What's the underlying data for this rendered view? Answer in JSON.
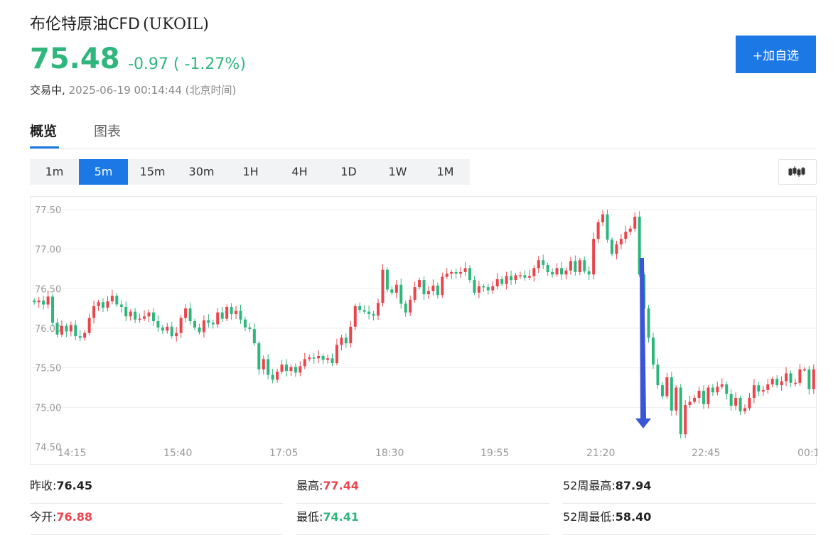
{
  "header": {
    "name": "布伦特原油CFD",
    "code": "(UKOIL)",
    "price": "75.48",
    "change": "-0.97 ( -1.27%)",
    "status_label": "交易中,",
    "timestamp": "2025-06-19 00:14:44",
    "tz": "(北京时间)",
    "add_button": "+加自选"
  },
  "tabs": [
    {
      "label": "概览",
      "active": true
    },
    {
      "label": "图表",
      "active": false
    }
  ],
  "intervals": [
    {
      "label": "1m",
      "active": false
    },
    {
      "label": "5m",
      "active": true
    },
    {
      "label": "15m",
      "active": false
    },
    {
      "label": "30m",
      "active": false
    },
    {
      "label": "1H",
      "active": false
    },
    {
      "label": "4H",
      "active": false
    },
    {
      "label": "1D",
      "active": false
    },
    {
      "label": "1W",
      "active": false
    },
    {
      "label": "1M",
      "active": false
    }
  ],
  "chart_type_icon": "candlestick-icon",
  "colors": {
    "up": "#e8454c",
    "down": "#2eb67d",
    "accent": "#1b78e5",
    "arrow": "#3a55d6"
  },
  "chart_data": {
    "type": "candlestick",
    "title": "",
    "xlabel": "",
    "ylabel": "",
    "ylim": [
      74.5,
      77.5
    ],
    "y_ticks": [
      "77.50",
      "77.00",
      "76.50",
      "76.00",
      "75.50",
      "75.00",
      "74.50"
    ],
    "x_ticks": [
      "14:15",
      "15:40",
      "17:05",
      "18:30",
      "19:55",
      "21:20",
      "22:45",
      "00:1"
    ],
    "grid": true,
    "annotation": "downward arrow near 21:50",
    "series": [
      {
        "close": [
          76.33,
          76.35,
          76.3,
          76.4,
          76.07,
          75.92,
          76.03,
          75.96,
          76.04,
          75.9,
          75.88,
          75.94,
          76.13,
          76.28,
          76.33,
          76.26,
          76.34,
          76.41,
          76.3,
          76.27,
          76.15,
          76.21,
          76.11,
          76.12,
          76.15,
          76.2,
          76.09,
          76.01,
          75.97,
          76.02,
          75.9,
          75.94,
          76.13,
          76.25,
          76.09,
          76.01,
          75.95,
          76.1,
          76.07,
          76.05,
          76.2,
          76.12,
          76.27,
          76.18,
          76.22,
          76.11,
          76.01,
          75.99,
          75.81,
          75.48,
          75.61,
          75.41,
          75.35,
          75.45,
          75.54,
          75.46,
          75.51,
          75.44,
          75.52,
          75.61,
          75.63,
          75.62,
          75.65,
          75.6,
          75.62,
          75.56,
          75.79,
          75.88,
          75.81,
          76.02,
          76.28,
          76.23,
          76.21,
          76.18,
          76.16,
          76.32,
          76.74,
          76.49,
          76.45,
          76.55,
          76.31,
          76.2,
          76.36,
          76.52,
          76.61,
          76.43,
          76.47,
          76.54,
          76.42,
          76.65,
          76.69,
          76.71,
          76.69,
          76.71,
          76.76,
          76.61,
          76.45,
          76.53,
          76.52,
          76.48,
          76.53,
          76.62,
          76.56,
          76.66,
          76.61,
          76.67,
          76.67,
          76.64,
          76.66,
          76.76,
          76.86,
          76.8,
          76.71,
          76.68,
          76.76,
          76.68,
          76.73,
          76.85,
          76.71,
          76.86,
          76.72,
          76.68,
          77.13,
          77.34,
          77.44,
          77.12,
          76.94,
          77.06,
          77.13,
          77.22,
          77.26,
          77.41,
          76.68,
          76.25,
          75.88,
          75.54,
          75.28,
          75.14,
          75.38,
          74.96,
          75.25,
          74.66,
          75.03,
          75.07,
          75.12,
          75.21,
          75.04,
          75.25,
          75.19,
          75.26,
          75.29,
          75.17,
          75.02,
          75.12,
          74.95,
          74.99,
          75.12,
          75.28,
          75.2,
          75.22,
          75.29,
          75.36,
          75.28,
          75.33,
          75.43,
          75.31,
          75.31,
          75.48,
          75.48,
          75.23,
          75.48
        ]
      }
    ]
  },
  "stats": [
    {
      "label": "昨收:",
      "value": "76.45",
      "color": "neutral"
    },
    {
      "label": "最高:",
      "value": "77.44",
      "color": "red"
    },
    {
      "label": "52周最高:",
      "value": "87.94",
      "color": "neutral"
    },
    {
      "label": "今开:",
      "value": "76.88",
      "color": "red"
    },
    {
      "label": "最低:",
      "value": "74.41",
      "color": "green"
    },
    {
      "label": "52周最低:",
      "value": "58.40",
      "color": "neutral"
    }
  ]
}
